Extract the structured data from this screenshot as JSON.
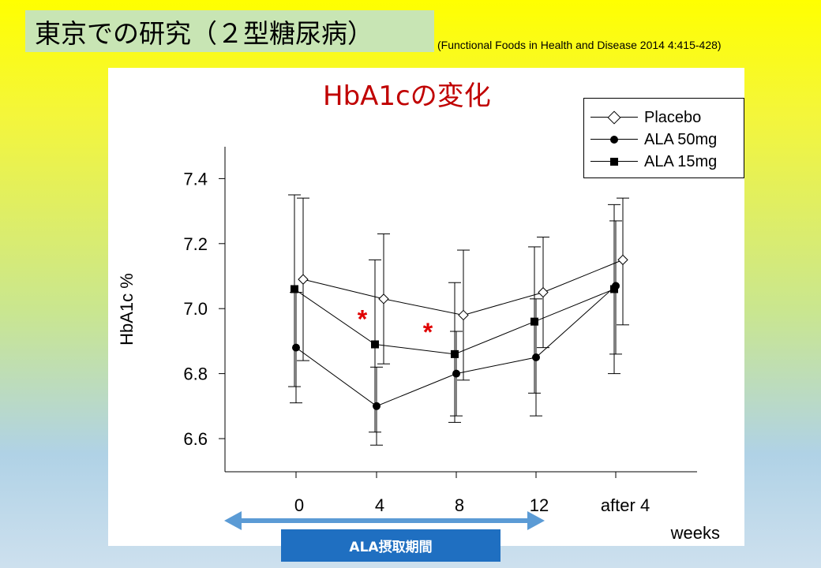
{
  "slide": {
    "title": "東京での研究（２型糖尿病）",
    "citation": "(Functional Foods in Health and Disease 2014 4:415-428)"
  },
  "period_label": "ALA摂取期間",
  "colors": {
    "title_red": "#c00000",
    "period_blue": "#1f6fc1",
    "arrow_blue": "#5b9bd5"
  },
  "chart_data": {
    "type": "line",
    "title": "HbA1cの変化",
    "ylabel": "HbA1c %",
    "xlabel": "weeks",
    "categories": [
      "0",
      "4",
      "8",
      "12",
      "after 4"
    ],
    "ylim": [
      6.5,
      7.5
    ],
    "yticks": [
      6.6,
      6.8,
      7.0,
      7.2,
      7.4
    ],
    "ytick_labels": [
      "6.6",
      "6.8",
      "7.0",
      "7.2",
      "7.4"
    ],
    "legend_position": "top-right",
    "series": [
      {
        "name": "Placebo",
        "marker": "diamond",
        "values": [
          7.09,
          7.03,
          6.98,
          7.05,
          7.15
        ],
        "err_low": [
          6.84,
          6.83,
          6.78,
          6.88,
          6.95
        ],
        "err_high": [
          7.34,
          7.23,
          7.18,
          7.22,
          7.34
        ]
      },
      {
        "name": "ALA 50mg",
        "marker": "circle",
        "values": [
          6.88,
          6.7,
          6.8,
          6.85,
          7.07
        ],
        "err_low": [
          6.71,
          6.58,
          6.67,
          6.67,
          6.86
        ],
        "err_high": [
          7.05,
          6.82,
          6.93,
          7.03,
          7.27
        ]
      },
      {
        "name": "ALA 15mg",
        "marker": "square",
        "values": [
          7.06,
          6.89,
          6.86,
          6.96,
          7.06
        ],
        "err_low": [
          6.76,
          6.62,
          6.65,
          6.74,
          6.8
        ],
        "err_high": [
          7.35,
          7.15,
          7.08,
          7.19,
          7.32
        ]
      }
    ],
    "annotations": [
      {
        "text": "*",
        "between": [
          "0",
          "4"
        ],
        "y": 6.99
      },
      {
        "text": "*",
        "between": [
          "4",
          "8"
        ],
        "y": 6.95
      }
    ]
  }
}
